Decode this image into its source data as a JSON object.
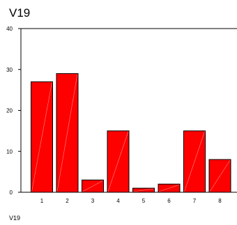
{
  "chart_data": {
    "type": "bar",
    "title": "V19",
    "xlabel": "V19",
    "ylabel": "",
    "categories": [
      "1",
      "2",
      "3",
      "4",
      "5",
      "6",
      "7",
      "8"
    ],
    "values": [
      27,
      29,
      3,
      15,
      1,
      2,
      15,
      8
    ],
    "ylim": [
      0,
      40
    ],
    "yticks": [
      0,
      10,
      20,
      30,
      40
    ],
    "grid": false,
    "bar_color": "#ff0000",
    "bar_outline_color": "#000000"
  }
}
